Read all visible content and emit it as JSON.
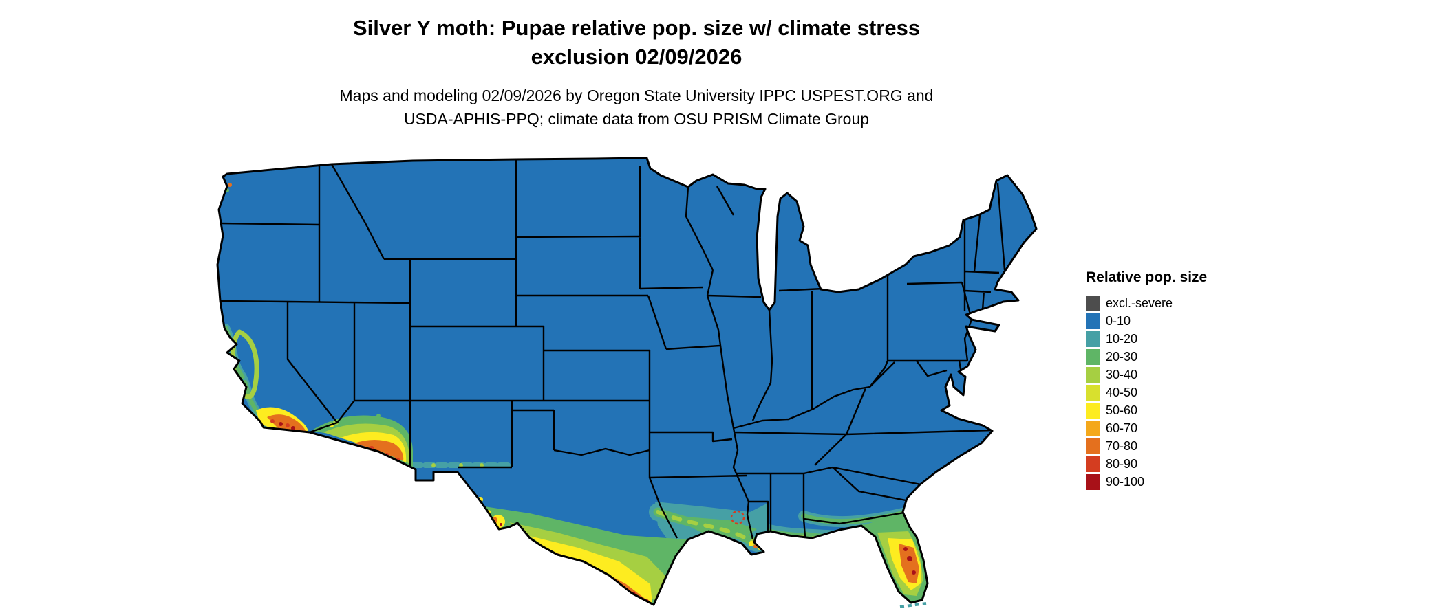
{
  "title": {
    "line1": "Silver Y moth: Pupae relative pop. size w/ climate stress",
    "line2": "exclusion 02/09/2026"
  },
  "subtitle": {
    "line1": "Maps and modeling 02/09/2026 by Oregon State University IPPC USPEST.ORG and",
    "line2": "USDA-APHIS-PPQ; climate data from OSU PRISM Climate Group"
  },
  "legend": {
    "title": "Relative pop. size",
    "items": [
      {
        "label": "excl.-severe",
        "color": "#4d4d4d"
      },
      {
        "label": "0-10",
        "color": "#2373b6"
      },
      {
        "label": "10-20",
        "color": "#46a0a5"
      },
      {
        "label": "20-30",
        "color": "#5fb566"
      },
      {
        "label": "30-40",
        "color": "#a6cf42"
      },
      {
        "label": "40-50",
        "color": "#d8e02e"
      },
      {
        "label": "50-60",
        "color": "#fdec20"
      },
      {
        "label": "60-70",
        "color": "#f4a81b"
      },
      {
        "label": "70-80",
        "color": "#e4701e"
      },
      {
        "label": "80-90",
        "color": "#d43d20"
      },
      {
        "label": "90-100",
        "color": "#a81118"
      }
    ]
  },
  "map": {
    "base_color": "#2373b6",
    "border_color": "#000000"
  }
}
